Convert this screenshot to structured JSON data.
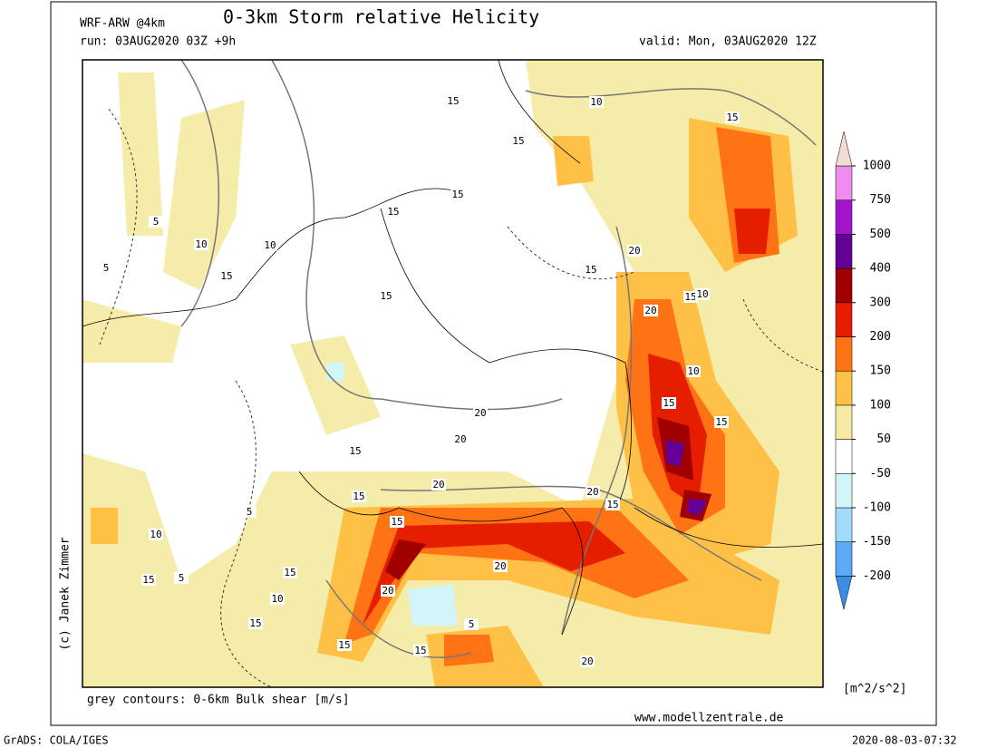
{
  "header": {
    "model": "WRF-ARW @4km",
    "title": "0-3km Storm relative Helicity",
    "run": "run: 03AUG2020 03Z +9h",
    "valid": "valid: Mon, 03AUG2020 12Z"
  },
  "colorbar": {
    "unit": "[m^2/s^2]",
    "levels": [
      -200,
      -150,
      -100,
      -50,
      50,
      100,
      150,
      200,
      300,
      400,
      500,
      750,
      1000
    ],
    "colors": [
      "#3c8ce6",
      "#5aaaf5",
      "#a0dcfa",
      "#d2f5fa",
      "#ffffff",
      "#f5eba5",
      "#ffc046",
      "#ff7314",
      "#e61e00",
      "#a00000",
      "#640096",
      "#a514cd",
      "#f08cf0",
      "#f0dcd2"
    ]
  },
  "contour_note": "grey contours: 0-6km Bulk shear [m/s]",
  "contour_labels": [
    15,
    10,
    15,
    15,
    5,
    10,
    10,
    15,
    5,
    15,
    15,
    15,
    20,
    15,
    10,
    15,
    20,
    20,
    20,
    15,
    15,
    10,
    15,
    15,
    20,
    15,
    20,
    15,
    20,
    10,
    15,
    5,
    15,
    10,
    5,
    15,
    20,
    5,
    15,
    15,
    20
  ],
  "credit": "(c) Janek Zimmer",
  "website": "www.modellzentrale.de",
  "footer": {
    "software": "GrADS: COLA/IGES",
    "timestamp": "2020-08-03-07:32"
  }
}
